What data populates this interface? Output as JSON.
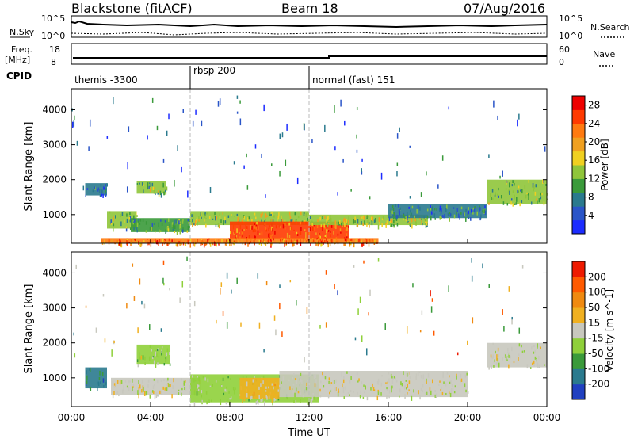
{
  "header": {
    "station": "Blackstone (fitACF)",
    "beam": "Beam 18",
    "date": "07/Aug/2016"
  },
  "top_panels": {
    "nsky_label": "N.Sky",
    "nsky_ticks": [
      "10^5",
      "10^0"
    ],
    "nsearch_label": "N.Search",
    "nsearch_ticks": [
      "10^5",
      "10^0"
    ],
    "freq_label": "Freq.",
    "freq_unit": "[MHz]",
    "freq_ticks": [
      "18",
      "8"
    ],
    "nave_label": "Nave",
    "nave_ticks": [
      "60",
      "0"
    ],
    "cpid_label": "CPID",
    "cpid_segments": [
      {
        "label": "themis -3300",
        "start_h": 0,
        "end_h": 6
      },
      {
        "label": "rbsp 200",
        "start_h": 6,
        "end_h": 12
      },
      {
        "label": "normal (fast) 151",
        "start_h": 12,
        "end_h": 24
      }
    ]
  },
  "chart_data": [
    {
      "type": "heatmap",
      "title": "",
      "xlabel": "Time UT",
      "ylabel": "Slant Range [km]",
      "xlim": [
        0,
        24
      ],
      "ylim": [
        180,
        4600
      ],
      "x_ticks": [
        "00:00",
        "04:00",
        "08:00",
        "12:00",
        "16:00",
        "20:00",
        "00:00"
      ],
      "y_ticks": [
        "1000",
        "2000",
        "3000",
        "4000"
      ],
      "colorbar": {
        "label": "Power [dB]",
        "ticks": [
          "4",
          "8",
          "12",
          "16",
          "20",
          "24",
          "28"
        ],
        "range": [
          0,
          30
        ],
        "colors": [
          "#1c2cff",
          "#2a55c8",
          "#2a7a8e",
          "#3a9a3a",
          "#8fc53a",
          "#f0d020",
          "#f0a020",
          "#ff7a10",
          "#ff3a00",
          "#ee0000"
        ]
      },
      "echo_bands": [
        {
          "t0": 0.7,
          "t1": 1.8,
          "r0": 1550,
          "r1": 1900,
          "val": 6
        },
        {
          "t0": 1.8,
          "t1": 3.3,
          "r0": 600,
          "r1": 1100,
          "val": 12
        },
        {
          "t0": 3.3,
          "t1": 4.8,
          "r0": 1600,
          "r1": 1950,
          "val": 12
        },
        {
          "t0": 3.0,
          "t1": 6.0,
          "r0": 500,
          "r1": 900,
          "val": 10
        },
        {
          "t0": 6.0,
          "t1": 12.0,
          "r0": 700,
          "r1": 1100,
          "val": 14
        },
        {
          "t0": 8.0,
          "t1": 14.0,
          "r0": 300,
          "r1": 800,
          "val": 24
        },
        {
          "t0": 12.0,
          "t1": 18.0,
          "r0": 700,
          "r1": 1000,
          "val": 14
        },
        {
          "t0": 16.0,
          "t1": 21.0,
          "r0": 900,
          "r1": 1300,
          "val": 8
        },
        {
          "t0": 21.0,
          "t1": 24.0,
          "r0": 1300,
          "r1": 2000,
          "val": 12
        },
        {
          "t0": 1.5,
          "t1": 15.5,
          "r0": 180,
          "r1": 330,
          "val": 22
        }
      ]
    },
    {
      "type": "heatmap",
      "title": "",
      "xlabel": "Time UT",
      "ylabel": "Slant Range [km]",
      "xlim": [
        0,
        24
      ],
      "ylim": [
        180,
        4600
      ],
      "x_ticks": [
        "00:00",
        "04:00",
        "08:00",
        "12:00",
        "16:00",
        "20:00",
        "00:00"
      ],
      "y_ticks": [
        "1000",
        "2000",
        "3000",
        "4000"
      ],
      "colorbar": {
        "label": "Velocity [m s^-1]",
        "ticks": [
          "200",
          "100",
          "50",
          "15",
          "-15",
          "-50",
          "-100",
          "-200"
        ],
        "range": [
          -250,
          250
        ],
        "colors": [
          "#2040c0",
          "#2a7a8e",
          "#3a9a3a",
          "#8fd03a",
          "#c8c8be",
          "#f0b020",
          "#f08a10",
          "#ff5a00",
          "#ee1a00"
        ]
      },
      "echo_bands": [
        {
          "t0": 0.7,
          "t1": 1.8,
          "r0": 700,
          "r1": 1300,
          "val": -150
        },
        {
          "t0": 3.3,
          "t1": 5.0,
          "r0": 1400,
          "r1": 1950,
          "val": -60
        },
        {
          "t0": 2.0,
          "t1": 6.5,
          "r0": 500,
          "r1": 1000,
          "val": 0
        },
        {
          "t0": 6.0,
          "t1": 12.5,
          "r0": 300,
          "r1": 1100,
          "val": -40
        },
        {
          "t0": 8.5,
          "t1": 10.5,
          "r0": 400,
          "r1": 1000,
          "val": 30
        },
        {
          "t0": 10.5,
          "t1": 20.0,
          "r0": 450,
          "r1": 1200,
          "val": 0
        },
        {
          "t0": 21.0,
          "t1": 24.0,
          "r0": 1300,
          "r1": 2000,
          "val": 0
        }
      ]
    }
  ]
}
